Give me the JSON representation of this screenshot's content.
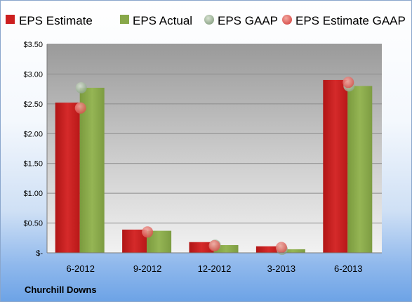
{
  "company": "Churchill Downs",
  "colors": {
    "eps_estimate": "#cc1f1f",
    "eps_actual": "#88a84a",
    "eps_gaap": "#9fb59a",
    "eps_estimate_gaap": "#e86a6a"
  },
  "chart_data": {
    "type": "bar",
    "categories": [
      "6-2012",
      "9-2012",
      "12-2012",
      "3-2013",
      "6-2013"
    ],
    "series": [
      {
        "name": "EPS Estimate",
        "kind": "bar",
        "values": [
          2.52,
          0.39,
          0.18,
          0.11,
          2.9
        ]
      },
      {
        "name": "EPS Actual",
        "kind": "bar",
        "values": [
          2.77,
          0.37,
          0.13,
          0.06,
          2.8
        ]
      },
      {
        "name": "EPS GAAP",
        "kind": "marker",
        "values": [
          2.77,
          null,
          0.13,
          0.06,
          2.8
        ]
      },
      {
        "name": "EPS Estimate GAAP",
        "kind": "marker",
        "values": [
          2.43,
          0.35,
          0.12,
          0.09,
          2.86
        ]
      }
    ],
    "ylim": [
      0,
      3.5
    ],
    "yticks": [
      {
        "value": 3.5,
        "label": "$3.50"
      },
      {
        "value": 3.0,
        "label": "$3.00"
      },
      {
        "value": 2.5,
        "label": "$2.50"
      },
      {
        "value": 2.0,
        "label": "$2.00"
      },
      {
        "value": 1.5,
        "label": "$1.50"
      },
      {
        "value": 1.0,
        "label": "$1.00"
      },
      {
        "value": 0.5,
        "label": "$0.50"
      },
      {
        "value": 0,
        "label": "$-"
      }
    ],
    "grid": true,
    "legend": "top"
  }
}
